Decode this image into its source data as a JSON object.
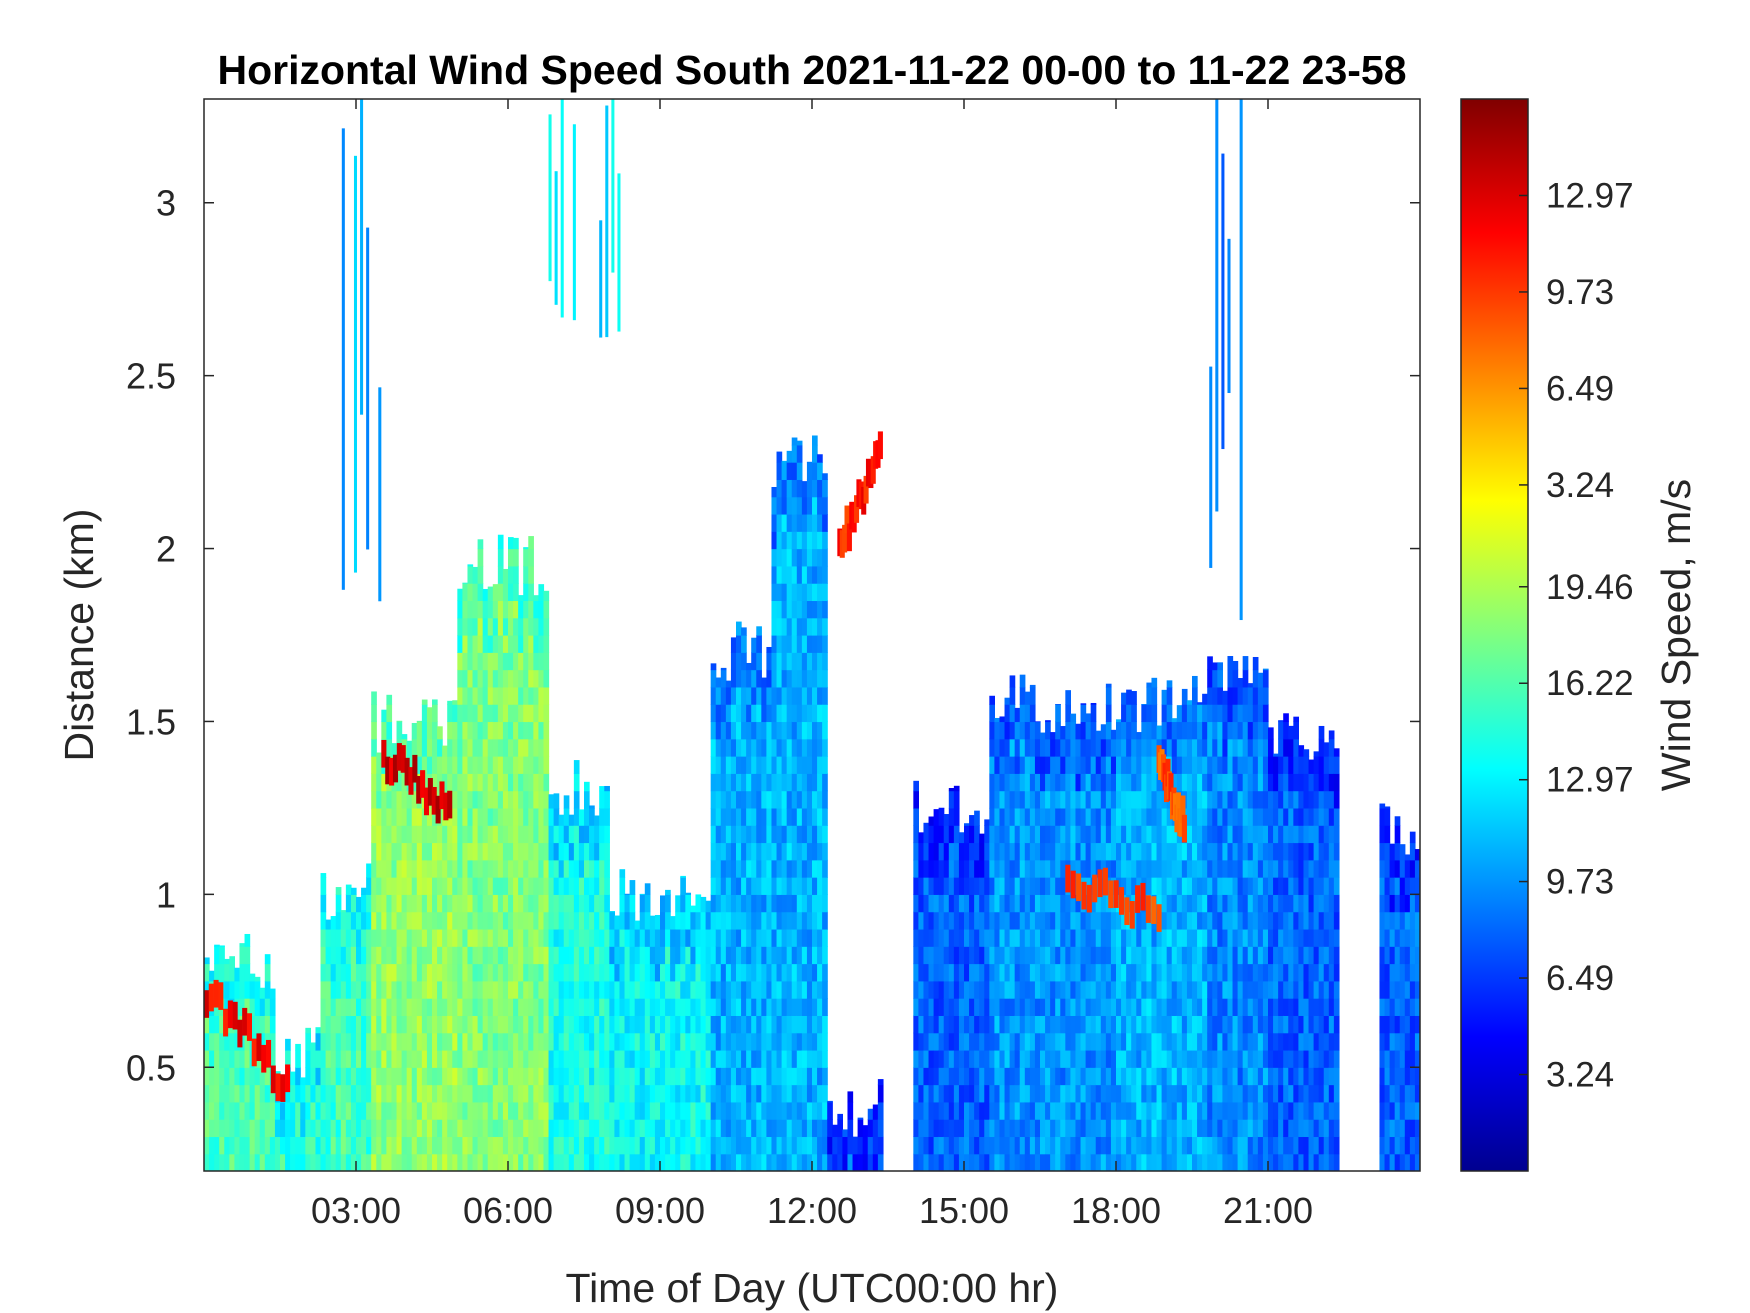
{
  "chart_data": {
    "type": "heatmap",
    "title": "Horizontal Wind Speed South 2021-11-22 00-00 to 11-22 23-58",
    "xlabel": "Time of Day (UTC00:00 hr)",
    "ylabel": "Distance (km)",
    "xlim": [
      0,
      24
    ],
    "ylim": [
      0.2,
      3.3
    ],
    "x_ticks": [
      {
        "value": 3,
        "label": "03:00"
      },
      {
        "value": 6,
        "label": "06:00"
      },
      {
        "value": 9,
        "label": "09:00"
      },
      {
        "value": 12,
        "label": "12:00"
      },
      {
        "value": 15,
        "label": "15:00"
      },
      {
        "value": 18,
        "label": "18:00"
      },
      {
        "value": 21,
        "label": "21:00"
      }
    ],
    "y_ticks": [
      {
        "value": 0.5,
        "label": "0.5"
      },
      {
        "value": 1,
        "label": "1"
      },
      {
        "value": 1.5,
        "label": "1.5"
      },
      {
        "value": 2,
        "label": "2"
      },
      {
        "value": 2.5,
        "label": "2.5"
      },
      {
        "value": 3,
        "label": "3"
      }
    ],
    "colorbar": {
      "label": "Wind Speed, m/s",
      "colormap": "jet",
      "ticks": [
        {
          "fraction": 0.09,
          "label": "3.24"
        },
        {
          "fraction": 0.18,
          "label": "6.49"
        },
        {
          "fraction": 0.27,
          "label": "9.73"
        },
        {
          "fraction": 0.365,
          "label": "12.97"
        },
        {
          "fraction": 0.455,
          "label": "16.22"
        },
        {
          "fraction": 0.545,
          "label": "19.46"
        },
        {
          "fraction": 0.64,
          "label": "3.24"
        },
        {
          "fraction": 0.73,
          "label": "6.49"
        },
        {
          "fraction": 0.82,
          "label": "9.73"
        },
        {
          "fraction": 0.91,
          "label": "12.97"
        }
      ]
    },
    "regions": [
      {
        "x": [
          0,
          1.4
        ],
        "y_top": 0.8,
        "level": 0.45
      },
      {
        "x": [
          1.4,
          2.3
        ],
        "y_top": 0.55,
        "level": 0.42
      },
      {
        "x": [
          2.3,
          3.3
        ],
        "y_top": 1.0,
        "level": 0.44
      },
      {
        "x": [
          3.3,
          5.0
        ],
        "y_top": 1.5,
        "level": 0.52
      },
      {
        "x": [
          5.0,
          6.8
        ],
        "y_top": 1.95,
        "level": 0.5
      },
      {
        "x": [
          6.8,
          8.0
        ],
        "y_top": 1.3,
        "level": 0.4
      },
      {
        "x": [
          8.0,
          10.0
        ],
        "y_top": 1.0,
        "level": 0.38
      },
      {
        "x": [
          10.0,
          11.2
        ],
        "y_top": 1.7,
        "level": 0.3
      },
      {
        "x": [
          11.2,
          12.3
        ],
        "y_top": 2.25,
        "level": 0.3
      },
      {
        "x": [
          12.3,
          13.4
        ],
        "y_top": 0.38,
        "level": 0.22
      },
      {
        "x": [
          14.0,
          15.5
        ],
        "y_top": 1.25,
        "level": 0.22
      },
      {
        "x": [
          15.5,
          18.0
        ],
        "y_top": 1.55,
        "level": 0.27
      },
      {
        "x": [
          18.0,
          19.8
        ],
        "y_top": 1.55,
        "level": 0.3
      },
      {
        "x": [
          19.8,
          21.0
        ],
        "y_top": 1.6,
        "level": 0.26
      },
      {
        "x": [
          21.0,
          22.4
        ],
        "y_top": 1.45,
        "level": 0.22
      },
      {
        "x": [
          23.2,
          24.0
        ],
        "y_top": 1.2,
        "level": 0.22
      }
    ],
    "high_speed_features": [
      {
        "x": [
          0.0,
          1.6
        ],
        "y": [
          0.72,
          0.45
        ],
        "level": 0.88
      },
      {
        "x": [
          3.5,
          4.8
        ],
        "y": [
          1.4,
          1.25
        ],
        "level": 0.92
      },
      {
        "x": [
          12.5,
          13.3
        ],
        "y": [
          2.0,
          2.3
        ],
        "level": 0.85
      },
      {
        "x": [
          17.0,
          18.8
        ],
        "y": [
          1.05,
          0.95
        ],
        "level": 0.8
      },
      {
        "x": [
          18.8,
          19.3
        ],
        "y": [
          1.4,
          1.2
        ],
        "level": 0.8
      }
    ],
    "upper_plumes": [
      {
        "x": [
          2.6,
          3.6
        ],
        "y": [
          1.6,
          3.3
        ],
        "level": 0.3
      },
      {
        "x": [
          6.8,
          7.5
        ],
        "y": [
          2.6,
          3.3
        ],
        "level": 0.38
      },
      {
        "x": [
          7.8,
          8.2
        ],
        "y": [
          2.6,
          3.3
        ],
        "level": 0.35
      },
      {
        "x": [
          19.6,
          20.7
        ],
        "y": [
          1.6,
          3.3
        ],
        "level": 0.24
      }
    ]
  }
}
